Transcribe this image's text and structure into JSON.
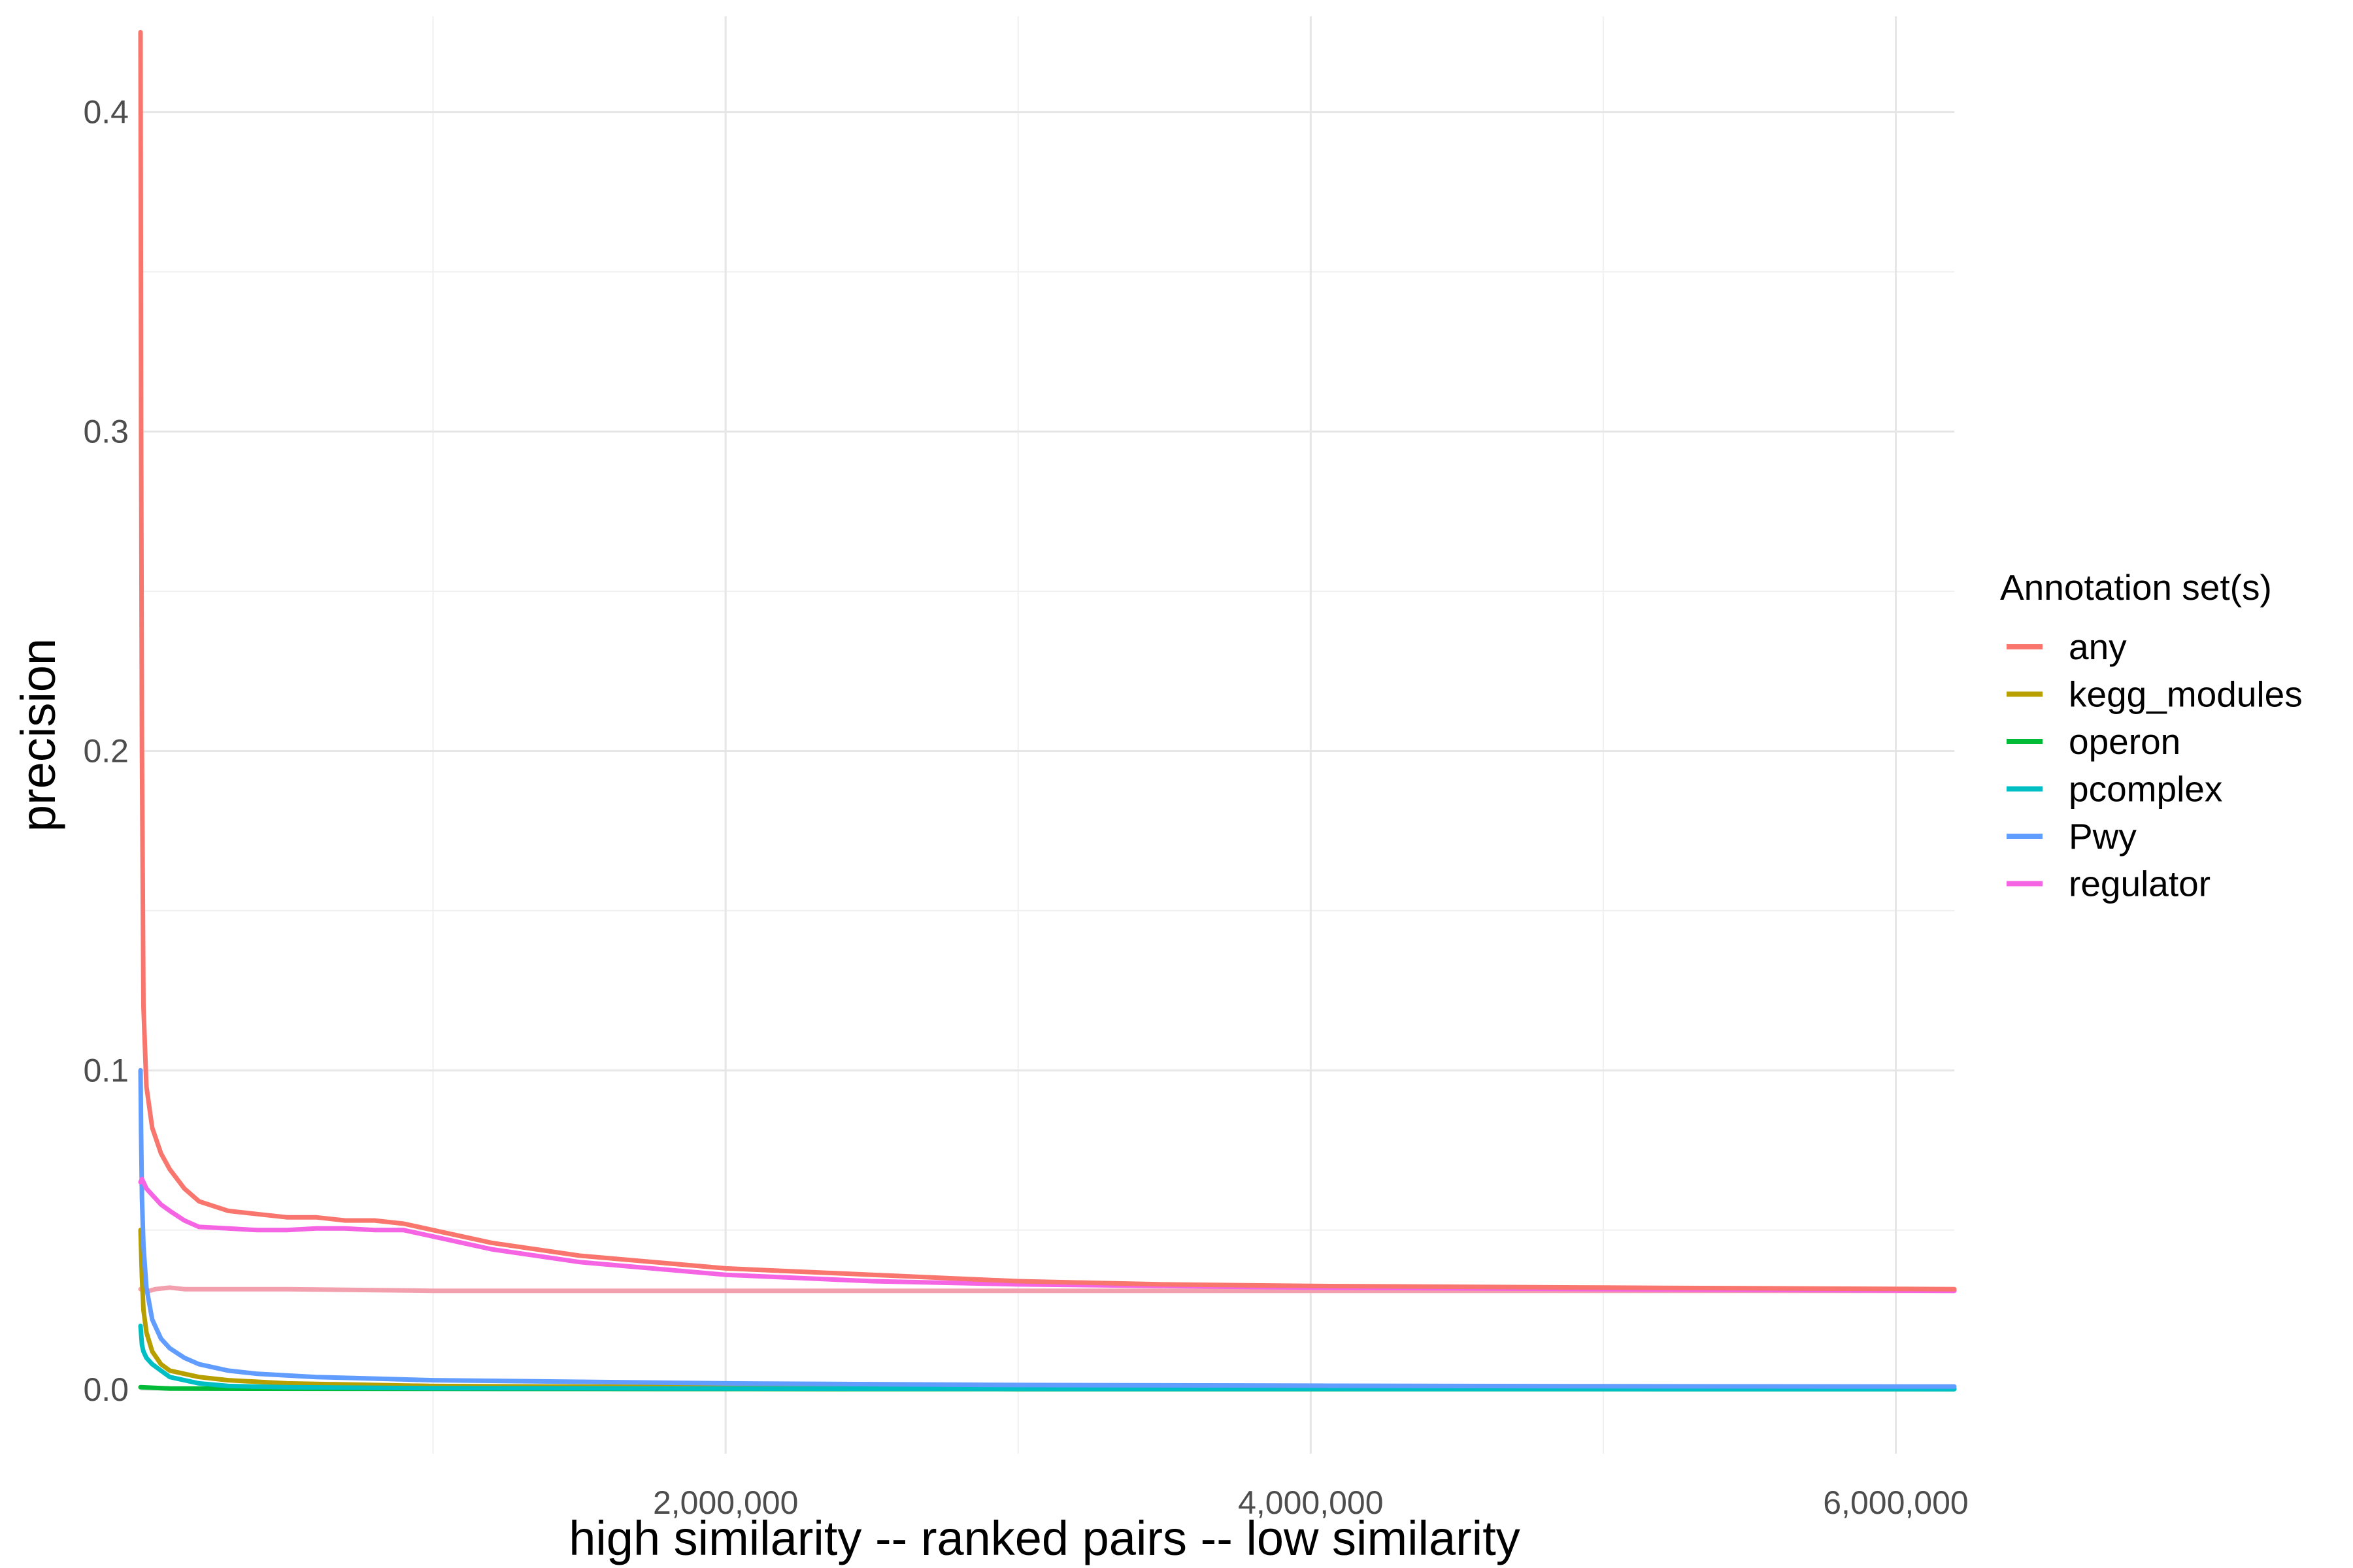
{
  "chart_data": {
    "type": "line",
    "title": "",
    "xlabel": "high similarity -- ranked pairs -- low similarity",
    "ylabel": "precision",
    "xlim": [
      0,
      6200000
    ],
    "ylim": [
      -0.02,
      0.43
    ],
    "x_ticks": [
      2000000,
      4000000,
      6000000
    ],
    "x_tick_labels": [
      "2,000,000",
      "4,000,000",
      "6,000,000"
    ],
    "y_ticks": [
      0,
      0.1,
      0.2,
      0.3,
      0.4
    ],
    "y_tick_labels": [
      "0.0",
      "0.1",
      "0.2",
      "0.3",
      "0.4"
    ],
    "grid": true,
    "legend": {
      "title": "Annotation set(s)",
      "position": "right"
    },
    "series": [
      {
        "name": "any",
        "color": "#F8766D",
        "x": [
          0,
          2000,
          5000,
          10000,
          20000,
          40000,
          70000,
          100000,
          150000,
          200000,
          300000,
          400000,
          500000,
          600000,
          700000,
          800000,
          900000,
          1000000,
          1200000,
          1500000,
          2000000,
          2500000,
          3000000,
          3500000,
          4000000,
          5000000,
          6200000
        ],
        "y": [
          0.425,
          0.3,
          0.2,
          0.12,
          0.095,
          0.082,
          0.074,
          0.069,
          0.063,
          0.059,
          0.056,
          0.055,
          0.054,
          0.054,
          0.053,
          0.053,
          0.052,
          0.05,
          0.046,
          0.042,
          0.038,
          0.036,
          0.034,
          0.033,
          0.0325,
          0.032,
          0.0315
        ]
      },
      {
        "name": "kegg_modules",
        "color": "#B79F00",
        "x": [
          0,
          5000,
          10000,
          20000,
          40000,
          70000,
          100000,
          150000,
          200000,
          300000,
          500000,
          800000,
          1000000,
          2000000,
          4000000,
          6200000
        ],
        "y": [
          0.05,
          0.035,
          0.025,
          0.018,
          0.012,
          0.008,
          0.006,
          0.005,
          0.004,
          0.003,
          0.002,
          0.0015,
          0.0012,
          0.0008,
          0.0005,
          0.0004
        ]
      },
      {
        "name": "operon",
        "color": "#00BA38",
        "x": [
          0,
          100000,
          1000000,
          3000000,
          6200000
        ],
        "y": [
          0.0008,
          0.0004,
          0.0003,
          0.0002,
          0.0002
        ]
      },
      {
        "name": "pcomplex",
        "color": "#00BFC4",
        "x": [
          0,
          5000,
          10000,
          20000,
          40000,
          70000,
          100000,
          150000,
          200000,
          300000,
          500000,
          1000000,
          3000000,
          6200000
        ],
        "y": [
          0.02,
          0.014,
          0.012,
          0.01,
          0.008,
          0.006,
          0.004,
          0.003,
          0.002,
          0.0012,
          0.0008,
          0.0005,
          0.0003,
          0.0002
        ]
      },
      {
        "name": "Pwy",
        "color": "#619CFF",
        "x": [
          0,
          2000,
          5000,
          10000,
          20000,
          40000,
          70000,
          100000,
          150000,
          200000,
          300000,
          400000,
          600000,
          800000,
          1000000,
          1500000,
          2000000,
          3000000,
          4000000,
          5000000,
          6200000
        ],
        "y": [
          0.1,
          0.08,
          0.06,
          0.045,
          0.032,
          0.022,
          0.016,
          0.013,
          0.01,
          0.008,
          0.006,
          0.005,
          0.004,
          0.0035,
          0.003,
          0.0025,
          0.002,
          0.0015,
          0.0013,
          0.0011,
          0.001
        ]
      },
      {
        "name": "regulator",
        "color": "#F564E3",
        "x": [
          0,
          5000,
          10000,
          20000,
          30000,
          50000,
          70000,
          100000,
          150000,
          200000,
          300000,
          400000,
          500000,
          600000,
          700000,
          800000,
          900000,
          1000000,
          1200000,
          1500000,
          2000000,
          2500000,
          3000000,
          4000000,
          5000000,
          6200000
        ],
        "y": [
          0.065,
          0.066,
          0.065,
          0.063,
          0.062,
          0.06,
          0.058,
          0.056,
          0.053,
          0.051,
          0.0505,
          0.05,
          0.05,
          0.0505,
          0.0505,
          0.05,
          0.05,
          0.048,
          0.044,
          0.04,
          0.036,
          0.034,
          0.033,
          0.032,
          0.0315,
          0.031
        ]
      },
      {
        "name": "",
        "color": "#F3A0AE",
        "x": [
          0,
          30000,
          50000,
          100000,
          150000,
          200000,
          500000,
          1000000,
          2000000,
          3000000,
          4000000,
          5000000,
          6200000
        ],
        "y": [
          0.0315,
          0.031,
          0.0315,
          0.032,
          0.0315,
          0.0315,
          0.0315,
          0.031,
          0.031,
          0.031,
          0.031,
          0.031,
          0.031
        ]
      }
    ]
  }
}
